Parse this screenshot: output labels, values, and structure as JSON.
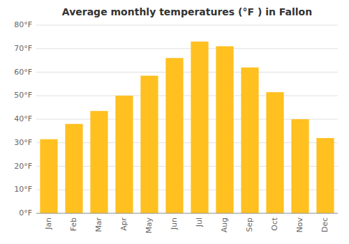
{
  "chart_data": {
    "type": "bar",
    "title": "Average monthly temperatures (°F ) in Fallon",
    "categories": [
      "Jan",
      "Feb",
      "Mar",
      "Apr",
      "May",
      "Jun",
      "Jul",
      "Aug",
      "Sep",
      "Oct",
      "Nov",
      "Dec"
    ],
    "values": [
      31.5,
      38.0,
      43.5,
      50.0,
      58.5,
      66.0,
      73.0,
      71.0,
      62.0,
      51.5,
      40.0,
      32.0
    ],
    "color": "#FFC020",
    "ylim": [
      0,
      80
    ],
    "yticks": [
      {
        "value": 0,
        "label": "0°F"
      },
      {
        "value": 10,
        "label": "10°F"
      },
      {
        "value": 20,
        "label": "20°F"
      },
      {
        "value": 30,
        "label": "30°F"
      },
      {
        "value": 40,
        "label": "40°F"
      },
      {
        "value": 50,
        "label": "50°F"
      },
      {
        "value": 60,
        "label": "60°F"
      },
      {
        "value": 70,
        "label": "70°F"
      },
      {
        "value": 80,
        "label": "80°F"
      }
    ],
    "grid": true
  }
}
